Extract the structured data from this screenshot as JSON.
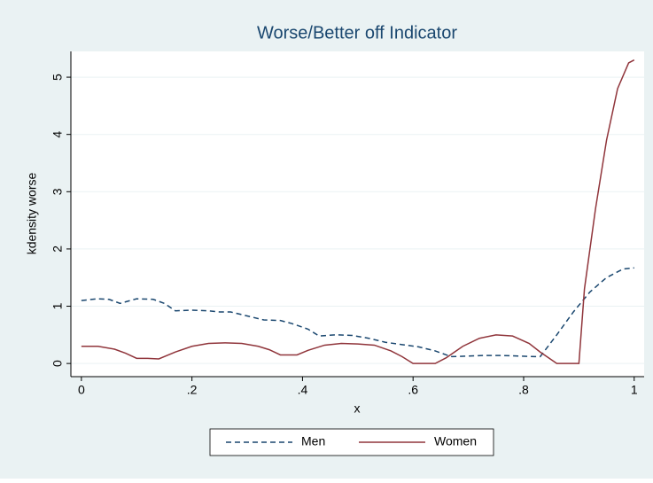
{
  "chart_data": {
    "type": "line",
    "title": "Worse/Better off Indicator",
    "x_label": "x",
    "y_label": "kdensity worse",
    "xlim": [
      -0.019,
      1.018
    ],
    "ylim": [
      -0.23,
      5.45
    ],
    "xticks": [
      0,
      {
        "value": 0.2,
        "label": ".2"
      },
      {
        "value": 0.4,
        "label": ".4"
      },
      {
        "value": 0.6,
        "label": ".6"
      },
      {
        "value": 0.8,
        "label": ".8"
      },
      1
    ],
    "yticks": [
      0,
      1,
      2,
      3,
      4,
      5
    ],
    "grid": true,
    "legend": "bottom",
    "series": [
      {
        "name": "Men",
        "color": "#1a476f",
        "dashed": true,
        "x": [
          0,
          0.03,
          0.05,
          0.07,
          0.1,
          0.13,
          0.15,
          0.17,
          0.2,
          0.23,
          0.25,
          0.27,
          0.3,
          0.33,
          0.36,
          0.38,
          0.41,
          0.43,
          0.46,
          0.49,
          0.52,
          0.55,
          0.58,
          0.61,
          0.64,
          0.66,
          0.67,
          0.7,
          0.73,
          0.76,
          0.79,
          0.82,
          0.83,
          0.86,
          0.89,
          0.92,
          0.95,
          0.98,
          1
        ],
        "values": [
          1.1,
          1.13,
          1.12,
          1.05,
          1.13,
          1.12,
          1.05,
          0.92,
          0.93,
          0.92,
          0.9,
          0.9,
          0.83,
          0.76,
          0.75,
          0.7,
          0.6,
          0.48,
          0.5,
          0.49,
          0.44,
          0.37,
          0.33,
          0.29,
          0.22,
          0.15,
          0.12,
          0.13,
          0.14,
          0.14,
          0.13,
          0.12,
          0.12,
          0.5,
          0.9,
          1.25,
          1.5,
          1.65,
          1.67
        ]
      },
      {
        "name": "Women",
        "color": "#90353b",
        "dashed": false,
        "x": [
          0,
          0.03,
          0.06,
          0.08,
          0.1,
          0.12,
          0.14,
          0.17,
          0.2,
          0.23,
          0.26,
          0.29,
          0.32,
          0.34,
          0.36,
          0.39,
          0.41,
          0.44,
          0.47,
          0.5,
          0.53,
          0.56,
          0.58,
          0.6,
          0.64,
          0.66,
          0.69,
          0.72,
          0.75,
          0.78,
          0.81,
          0.83,
          0.86,
          0.9,
          0.91,
          0.93,
          0.95,
          0.97,
          0.99,
          1
        ],
        "values": [
          0.3,
          0.3,
          0.25,
          0.18,
          0.09,
          0.09,
          0.08,
          0.2,
          0.3,
          0.35,
          0.36,
          0.35,
          0.3,
          0.24,
          0.15,
          0.15,
          0.23,
          0.32,
          0.35,
          0.34,
          0.32,
          0.22,
          0.12,
          0.0,
          0.0,
          0.1,
          0.3,
          0.44,
          0.5,
          0.48,
          0.35,
          0.2,
          0.0,
          0.0,
          1.3,
          2.7,
          3.9,
          4.8,
          5.25,
          5.3
        ]
      }
    ]
  }
}
